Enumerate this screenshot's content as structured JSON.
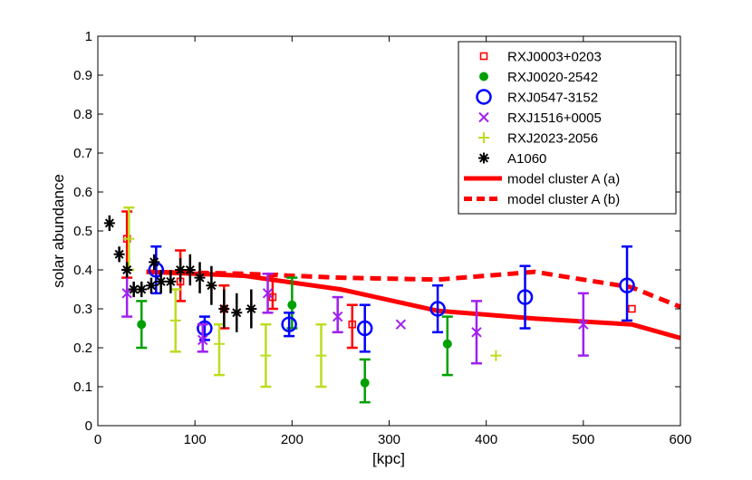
{
  "chart_data": {
    "type": "scatter",
    "xlabel": "[kpc]",
    "ylabel": "solar abundance",
    "xlim": [
      0,
      600
    ],
    "ylim": [
      0,
      1
    ],
    "xticks": [
      0,
      100,
      200,
      300,
      400,
      500,
      600
    ],
    "yticks": [
      0,
      0.1,
      0.2,
      0.3,
      0.4,
      0.5,
      0.6,
      0.7,
      0.8,
      0.9,
      1
    ],
    "xtick_labels": [
      "0",
      "100",
      "200",
      "300",
      "400",
      "500",
      "600"
    ],
    "ytick_labels": [
      "0",
      "0.1",
      "0.2",
      "0.3",
      "0.4",
      "0.5",
      "0.6",
      "0.7",
      "0.8",
      "0.9",
      "1"
    ],
    "legend_position": "top-right",
    "series": [
      {
        "name": "RXJ0003+0203",
        "marker": "square",
        "color": "#ff0000",
        "points": [
          {
            "x": 30,
            "y": 0.48,
            "lo": 0.38,
            "hi": 0.55
          },
          {
            "x": 85,
            "y": 0.37,
            "lo": 0.32,
            "hi": 0.45
          },
          {
            "x": 130,
            "y": 0.3,
            "lo": 0.25,
            "hi": 0.36
          },
          {
            "x": 180,
            "y": 0.33,
            "lo": 0.3,
            "hi": 0.39
          },
          {
            "x": 262,
            "y": 0.26,
            "lo": 0.2,
            "hi": 0.31
          },
          {
            "x": 550,
            "y": 0.3,
            "lo": 0.3,
            "hi": 0.3
          }
        ]
      },
      {
        "name": "RXJ0020-2542",
        "marker": "dot",
        "color": "#00a000",
        "points": [
          {
            "x": 45,
            "y": 0.26,
            "lo": 0.2,
            "hi": 0.32
          },
          {
            "x": 200,
            "y": 0.31,
            "lo": 0.25,
            "hi": 0.38
          },
          {
            "x": 275,
            "y": 0.11,
            "lo": 0.06,
            "hi": 0.17
          },
          {
            "x": 360,
            "y": 0.21,
            "lo": 0.13,
            "hi": 0.28
          }
        ]
      },
      {
        "name": "RXJ0547-3152",
        "marker": "circle",
        "color": "#0000ff",
        "points": [
          {
            "x": 60,
            "y": 0.4,
            "lo": 0.34,
            "hi": 0.46
          },
          {
            "x": 110,
            "y": 0.25,
            "lo": 0.22,
            "hi": 0.28
          },
          {
            "x": 197,
            "y": 0.26,
            "lo": 0.23,
            "hi": 0.29
          },
          {
            "x": 275,
            "y": 0.25,
            "lo": 0.19,
            "hi": 0.31
          },
          {
            "x": 350,
            "y": 0.3,
            "lo": 0.24,
            "hi": 0.36
          },
          {
            "x": 440,
            "y": 0.33,
            "lo": 0.25,
            "hi": 0.41
          },
          {
            "x": 545,
            "y": 0.36,
            "lo": 0.27,
            "hi": 0.46
          }
        ]
      },
      {
        "name": "RXJ1516+0005",
        "marker": "x",
        "color": "#a020f0",
        "points": [
          {
            "x": 30,
            "y": 0.34,
            "lo": 0.28,
            "hi": 0.4
          },
          {
            "x": 108,
            "y": 0.22,
            "lo": 0.19,
            "hi": 0.26
          },
          {
            "x": 175,
            "y": 0.34,
            "lo": 0.29,
            "hi": 0.39
          },
          {
            "x": 247,
            "y": 0.28,
            "lo": 0.24,
            "hi": 0.33
          },
          {
            "x": 312,
            "y": 0.26,
            "lo": 0.26,
            "hi": 0.26
          },
          {
            "x": 390,
            "y": 0.24,
            "lo": 0.16,
            "hi": 0.32
          },
          {
            "x": 500,
            "y": 0.26,
            "lo": 0.18,
            "hi": 0.34
          }
        ]
      },
      {
        "name": "RXJ2023-2056",
        "marker": "plus",
        "color": "#bbdd22",
        "points": [
          {
            "x": 32,
            "y": 0.48,
            "lo": 0.4,
            "hi": 0.56
          },
          {
            "x": 80,
            "y": 0.27,
            "lo": 0.19,
            "hi": 0.35
          },
          {
            "x": 125,
            "y": 0.21,
            "lo": 0.13,
            "hi": 0.26
          },
          {
            "x": 173,
            "y": 0.18,
            "lo": 0.1,
            "hi": 0.26
          },
          {
            "x": 230,
            "y": 0.18,
            "lo": 0.1,
            "hi": 0.26
          },
          {
            "x": 410,
            "y": 0.18,
            "lo": 0.18,
            "hi": 0.18
          }
        ]
      },
      {
        "name": "A1060",
        "marker": "star",
        "color": "#000000",
        "points": [
          {
            "x": 12,
            "y": 0.52,
            "lo": 0.5,
            "hi": 0.54
          },
          {
            "x": 22,
            "y": 0.44,
            "lo": 0.42,
            "hi": 0.46
          },
          {
            "x": 30,
            "y": 0.4,
            "lo": 0.38,
            "hi": 0.42
          },
          {
            "x": 37,
            "y": 0.35,
            "lo": 0.33,
            "hi": 0.37
          },
          {
            "x": 45,
            "y": 0.35,
            "lo": 0.33,
            "hi": 0.37
          },
          {
            "x": 55,
            "y": 0.36,
            "lo": 0.34,
            "hi": 0.38
          },
          {
            "x": 58,
            "y": 0.42,
            "lo": 0.4,
            "hi": 0.44
          },
          {
            "x": 65,
            "y": 0.37,
            "lo": 0.34,
            "hi": 0.4
          },
          {
            "x": 75,
            "y": 0.37,
            "lo": 0.34,
            "hi": 0.4
          },
          {
            "x": 85,
            "y": 0.4,
            "lo": 0.37,
            "hi": 0.43
          },
          {
            "x": 95,
            "y": 0.4,
            "lo": 0.36,
            "hi": 0.44
          },
          {
            "x": 105,
            "y": 0.38,
            "lo": 0.34,
            "hi": 0.42
          },
          {
            "x": 117,
            "y": 0.36,
            "lo": 0.31,
            "hi": 0.41
          },
          {
            "x": 130,
            "y": 0.3,
            "lo": 0.25,
            "hi": 0.35
          },
          {
            "x": 143,
            "y": 0.29,
            "lo": 0.24,
            "hi": 0.34
          },
          {
            "x": 158,
            "y": 0.3,
            "lo": 0.25,
            "hi": 0.35
          }
        ]
      }
    ],
    "lines": [
      {
        "name": "model cluster A (a)",
        "style": "solid",
        "color": "#ff0000",
        "x": [
          50,
          150,
          250,
          350,
          450,
          550,
          600
        ],
        "y": [
          0.395,
          0.385,
          0.35,
          0.295,
          0.275,
          0.26,
          0.225
        ]
      },
      {
        "name": "model cluster A (b)",
        "style": "dashed",
        "color": "#ff0000",
        "x": [
          50,
          150,
          250,
          350,
          450,
          550,
          600
        ],
        "y": [
          0.395,
          0.39,
          0.38,
          0.375,
          0.395,
          0.355,
          0.305
        ]
      }
    ]
  }
}
